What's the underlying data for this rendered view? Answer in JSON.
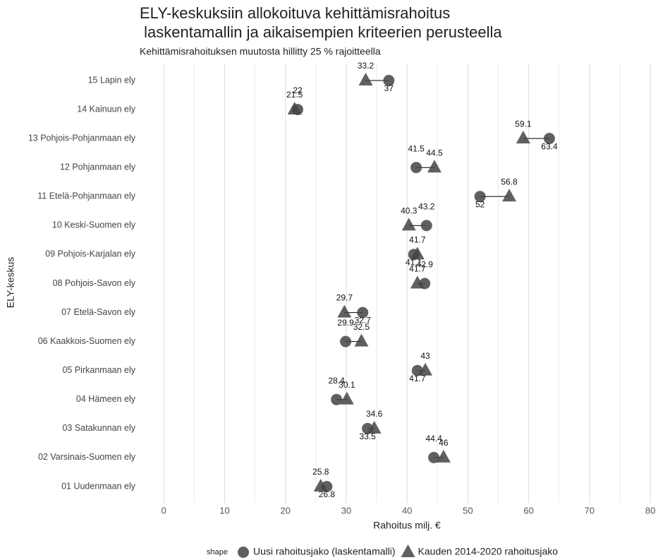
{
  "chart_data": {
    "type": "dumbbell",
    "title": [
      "ELY-keskuksiin allokoituva kehittämisrahoitus",
      " laskentamallin ja aikaisempien kriteerien perusteella"
    ],
    "subtitle": "Kehittämisrahoituksen muutosta hillitty 25 % rajoitteella",
    "x_label": "Rahoitus milj. €",
    "y_label": "ELY-keskus",
    "legend_title": "shape",
    "categories": [
      "15 Lapin ely",
      "14 Kainuun ely",
      "13 Pohjois-Pohjanmaan ely",
      "12 Pohjanmaan ely",
      "11 Etelä-Pohjanmaan ely",
      "10 Keski-Suomen ely",
      "09 Pohjois-Karjalan ely",
      "08 Pohjois-Savon ely",
      "07 Etelä-Savon ely",
      "06 Kaakkois-Suomen ely",
      "05 Pirkanmaan ely",
      "04 Hämeen ely",
      "03 Satakunnan ely",
      "02 Varsinais-Suomen ely",
      "01 Uudenmaan ely"
    ],
    "series": [
      {
        "name": "Uusi rahoitusjako (laskentamalli)",
        "shape": "circle",
        "color": "#444444",
        "values": [
          37,
          22,
          63.4,
          41.5,
          52,
          43.2,
          41.1,
          42.9,
          32.7,
          29.9,
          41.7,
          28.4,
          33.5,
          44.4,
          26.8
        ]
      },
      {
        "name": "Kauden 2014-2020 rahoitusjako",
        "shape": "triangle",
        "color": "#444444",
        "values": [
          33.2,
          21.5,
          59.1,
          44.5,
          56.8,
          40.3,
          41.7,
          41.7,
          29.7,
          32.5,
          43,
          30.1,
          34.6,
          46,
          25.8
        ]
      }
    ],
    "xlim": [
      -2.7,
      80.8
    ],
    "xticks": [
      0,
      10,
      20,
      30,
      40,
      50,
      60,
      70,
      80
    ],
    "minor_xticks": [
      5,
      15,
      25,
      35,
      45,
      55,
      65,
      75
    ],
    "grid": true,
    "legend": "bottom"
  }
}
